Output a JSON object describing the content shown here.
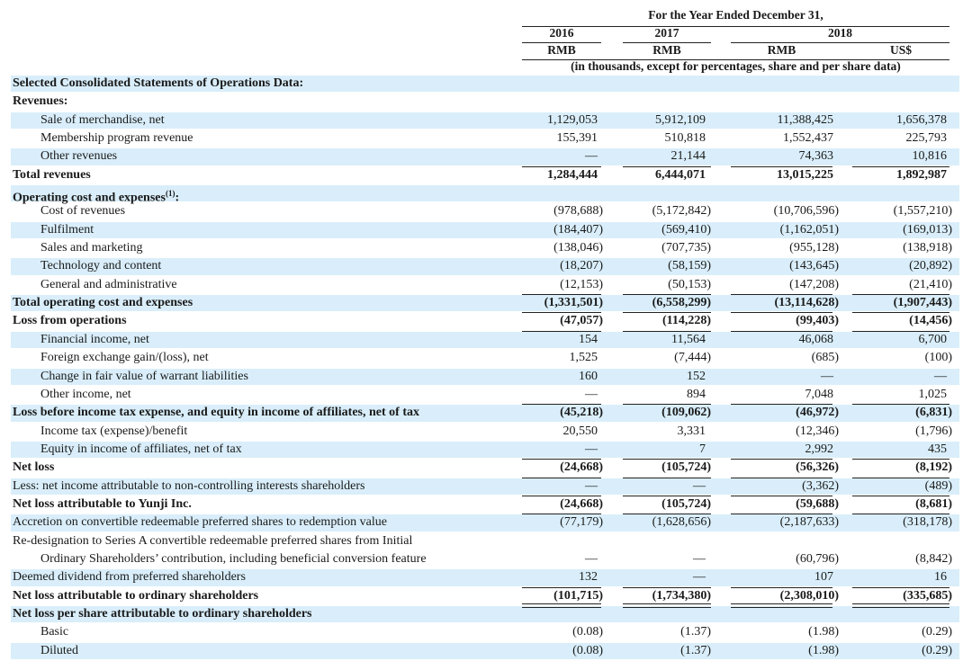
{
  "header": {
    "period": "For the Year Ended December 31,",
    "years": [
      "2016",
      "2017",
      "2018"
    ],
    "currencies": [
      "RMB",
      "RMB",
      "RMB",
      "US$"
    ],
    "note": "(in thousands, except for percentages, share and per share data)"
  },
  "colors": {
    "row_shade": "#d9eefa"
  },
  "rows": [
    {
      "label": "Selected Consolidated Statements of Operations Data:",
      "bold": true,
      "values": []
    },
    {
      "label": "Revenues:",
      "bold": true,
      "values": []
    },
    {
      "label": "Sale of merchandise, net",
      "indent": true,
      "values": [
        "1,129,053",
        "5,912,109",
        "11,388,425",
        "1,656,378"
      ]
    },
    {
      "label": "Membership program revenue",
      "indent": true,
      "values": [
        "155,391",
        "510,818",
        "1,552,437",
        "225,793"
      ]
    },
    {
      "label": "Other revenues",
      "indent": true,
      "values": [
        "—",
        "21,144",
        "74,363",
        "10,816"
      ],
      "rule": "single"
    },
    {
      "label": "Total revenues",
      "bold": true,
      "values": [
        "1,284,444",
        "6,444,071",
        "13,015,225",
        "1,892,987"
      ]
    },
    {
      "label": "Operating cost and expenses",
      "footnote": "(1)",
      "suffix": ":",
      "bold": true,
      "values": []
    },
    {
      "label": "Cost of revenues",
      "indent": true,
      "values": [
        "(978,688)",
        "(5,172,842)",
        "(10,706,596)",
        "(1,557,210)"
      ]
    },
    {
      "label": "Fulfilment",
      "indent": true,
      "values": [
        "(184,407)",
        "(569,410)",
        "(1,162,051)",
        "(169,013)"
      ]
    },
    {
      "label": "Sales and marketing",
      "indent": true,
      "values": [
        "(138,046)",
        "(707,735)",
        "(955,128)",
        "(138,918)"
      ]
    },
    {
      "label": "Technology and content",
      "indent": true,
      "values": [
        "(18,207)",
        "(58,159)",
        "(143,645)",
        "(20,892)"
      ]
    },
    {
      "label": "General and administrative",
      "indent": true,
      "values": [
        "(12,153)",
        "(50,153)",
        "(147,208)",
        "(21,410)"
      ],
      "rule": "single"
    },
    {
      "label": "Total operating cost and expenses",
      "bold": true,
      "values": [
        "(1,331,501)",
        "(6,558,299)",
        "(13,114,628)",
        "(1,907,443)"
      ],
      "rule": "single"
    },
    {
      "label": "Loss from operations",
      "bold": true,
      "values": [
        "(47,057)",
        "(114,228)",
        "(99,403)",
        "(14,456)"
      ],
      "rule": "single"
    },
    {
      "label": "Financial income, net",
      "indent": true,
      "values": [
        "154",
        "11,564",
        "46,068",
        "6,700"
      ]
    },
    {
      "label": "Foreign exchange gain/(loss), net",
      "indent": true,
      "values": [
        "1,525",
        "(7,444)",
        "(685)",
        "(100)"
      ]
    },
    {
      "label": "Change in fair value of warrant liabilities",
      "indent": true,
      "values": [
        "160",
        "152",
        "—",
        "—"
      ]
    },
    {
      "label": "Other income, net",
      "indent": true,
      "values": [
        "—",
        "894",
        "7,048",
        "1,025"
      ],
      "rule": "single"
    },
    {
      "label": "Loss before income tax expense, and equity in income of affiliates, net of tax",
      "bold": true,
      "values": [
        "(45,218)",
        "(109,062)",
        "(46,972)",
        "(6,831)"
      ]
    },
    {
      "label": "Income tax (expense)/benefit",
      "indent": true,
      "values": [
        "20,550",
        "3,331",
        "(12,346)",
        "(1,796)"
      ]
    },
    {
      "label": "Equity in income of affiliates, net of tax",
      "indent": true,
      "values": [
        "—",
        "7",
        "2,992",
        "435"
      ],
      "rule": "single"
    },
    {
      "label": "Net loss",
      "bold": true,
      "values": [
        "(24,668)",
        "(105,724)",
        "(56,326)",
        "(8,192)"
      ],
      "rule": "single"
    },
    {
      "label": "Less: net income attributable to non-controlling interests shareholders",
      "values": [
        "—",
        "—",
        "(3,362)",
        "(489)"
      ],
      "rule": "single"
    },
    {
      "label": "Net loss attributable to Yunji Inc.",
      "bold": true,
      "values": [
        "(24,668)",
        "(105,724)",
        "(59,688)",
        "(8,681)"
      ],
      "rule": "single"
    },
    {
      "label": "Accretion on convertible redeemable preferred shares to redemption value",
      "values": [
        "(77,179)",
        "(1,628,656)",
        "(2,187,633)",
        "(318,178)"
      ]
    },
    {
      "label": "Re-designation to Series A convertible redeemable preferred shares from Initial",
      "label2": "Ordinary Shareholders’ contribution, including beneficial conversion feature",
      "values": [
        "—",
        "—",
        "(60,796)",
        "(8,842)"
      ]
    },
    {
      "label": "Deemed dividend from preferred shareholders",
      "values": [
        "132",
        "—",
        "107",
        "16"
      ],
      "rule": "single"
    },
    {
      "label": "Net loss attributable to ordinary shareholders",
      "bold": true,
      "values": [
        "(101,715)",
        "(1,734,380)",
        "(2,308,010)",
        "(335,685)"
      ],
      "rule": "double"
    },
    {
      "label": "Net loss per share attributable to ordinary shareholders",
      "bold": true,
      "values": []
    },
    {
      "label": "Basic",
      "indent": true,
      "values": [
        "(0.08)",
        "(1.37)",
        "(1.98)",
        "(0.29)"
      ]
    },
    {
      "label": "Diluted",
      "indent": true,
      "values": [
        "(0.08)",
        "(1.37)",
        "(1.98)",
        "(0.29)"
      ]
    }
  ]
}
